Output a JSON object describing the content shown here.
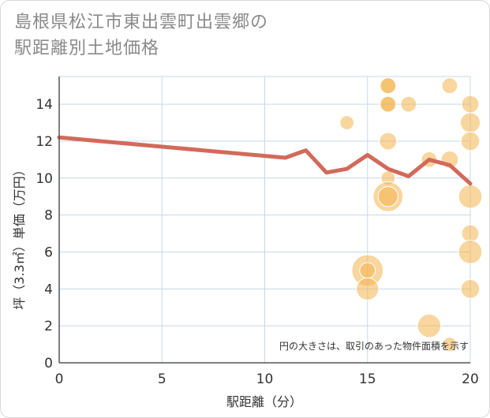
{
  "header": {
    "title_line1": "島根県松江市東出雲町出雲郷の",
    "title_line2": "駅距離別土地価格"
  },
  "chart_data": {
    "type": "scatter",
    "title": "島根県松江市東出雲町出雲郷の駅距離別土地価格",
    "xlabel": "駅距離（分）",
    "ylabel": "坪（3.3㎡）単価（万円）",
    "xlim": [
      0,
      20
    ],
    "ylim": [
      0,
      15.5
    ],
    "xticks": [
      "0",
      "5",
      "10",
      "15",
      "20"
    ],
    "yticks": [
      "0",
      "2",
      "4",
      "6",
      "8",
      "10",
      "12",
      "14"
    ],
    "note": "円の大きさは、取引のあった物件面積を示す",
    "colors": {
      "bubble": "#f3b44f",
      "line": "#d26a5a",
      "grid": "#c5d9e8",
      "axis": "#555555"
    },
    "line_series": {
      "name": "trend",
      "x": [
        0,
        11,
        12,
        13,
        14,
        15,
        16,
        17,
        18,
        19,
        20
      ],
      "y": [
        12.2,
        11.1,
        11.5,
        10.3,
        10.5,
        11.25,
        10.5,
        10.1,
        11.0,
        10.7,
        9.7
      ]
    },
    "bubbles": [
      {
        "x": 14,
        "y": 13.0,
        "size": 2
      },
      {
        "x": 15,
        "y": 5.0,
        "size": 10
      },
      {
        "x": 15,
        "y": 5.0,
        "size": 2.5
      },
      {
        "x": 15,
        "y": 4.0,
        "size": 5
      },
      {
        "x": 16,
        "y": 15.0,
        "size": 3
      },
      {
        "x": 16,
        "y": 15.0,
        "size": 2.5
      },
      {
        "x": 16,
        "y": 14.0,
        "size": 3
      },
      {
        "x": 16,
        "y": 14.0,
        "size": 2.5
      },
      {
        "x": 16,
        "y": 12.0,
        "size": 3
      },
      {
        "x": 16,
        "y": 10.0,
        "size": 2
      },
      {
        "x": 16,
        "y": 9.0,
        "size": 9
      },
      {
        "x": 16,
        "y": 9.0,
        "size": 4
      },
      {
        "x": 17,
        "y": 14.0,
        "size": 2.5
      },
      {
        "x": 18,
        "y": 11.0,
        "size": 2.5
      },
      {
        "x": 18,
        "y": 2.0,
        "size": 5.5
      },
      {
        "x": 19,
        "y": 15.0,
        "size": 2.5
      },
      {
        "x": 19,
        "y": 11.0,
        "size": 3
      },
      {
        "x": 19,
        "y": 1.0,
        "size": 2
      },
      {
        "x": 20,
        "y": 14.0,
        "size": 3
      },
      {
        "x": 20,
        "y": 13.0,
        "size": 4
      },
      {
        "x": 20,
        "y": 12.0,
        "size": 3.5
      },
      {
        "x": 20,
        "y": 9.0,
        "size": 5.5
      },
      {
        "x": 20,
        "y": 7.0,
        "size": 3
      },
      {
        "x": 20,
        "y": 6.0,
        "size": 5.5
      },
      {
        "x": 20,
        "y": 4.0,
        "size": 3.5
      }
    ]
  }
}
